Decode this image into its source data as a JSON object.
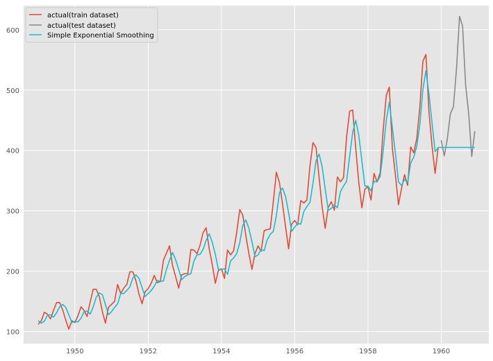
{
  "chart_data": {
    "type": "line",
    "title": "",
    "xlabel": "",
    "ylabel": "",
    "x_start": 1949.0,
    "x_step": 0.083333,
    "xlim": [
      1948.6,
      1961.3
    ],
    "ylim": [
      80,
      640
    ],
    "x_ticks": [
      1950,
      1952,
      1954,
      1956,
      1958,
      1960
    ],
    "x_tick_labels": [
      "1950",
      "1952",
      "1954",
      "1956",
      "1958",
      "1960"
    ],
    "y_ticks": [
      100,
      200,
      300,
      400,
      500,
      600
    ],
    "y_tick_labels": [
      "100",
      "200",
      "300",
      "400",
      "500",
      "600"
    ],
    "grid": true,
    "legend_position": "top-left",
    "style": {
      "background": "#e5e5e5",
      "grid_color": "#ffffff"
    },
    "series": [
      {
        "name": "actual(train dataset)",
        "color": "#e24a33",
        "start_index": 0,
        "values": [
          112,
          118,
          132,
          129,
          121,
          135,
          148,
          148,
          136,
          119,
          104,
          118,
          115,
          126,
          141,
          135,
          125,
          149,
          170,
          170,
          158,
          133,
          114,
          140,
          145,
          150,
          178,
          163,
          172,
          178,
          199,
          199,
          184,
          162,
          146,
          166,
          171,
          180,
          193,
          181,
          183,
          218,
          230,
          242,
          209,
          191,
          172,
          194,
          196,
          196,
          236,
          235,
          229,
          243,
          264,
          272,
          237,
          211,
          180,
          201,
          204,
          188,
          235,
          227,
          234,
          264,
          302,
          293,
          259,
          229,
          203,
          229,
          242,
          233,
          267,
          269,
          270,
          315,
          364,
          347,
          312,
          274,
          237,
          278,
          284,
          277,
          317,
          313,
          318,
          374,
          413,
          405,
          355,
          306,
          271,
          306,
          315,
          301,
          356,
          348,
          355,
          422,
          465,
          467,
          404,
          347,
          305,
          336,
          340,
          318,
          362,
          348,
          363,
          435,
          491,
          505,
          404,
          359,
          310,
          337,
          360,
          342,
          406,
          396,
          420,
          472,
          548,
          559,
          463,
          407,
          362,
          405
        ]
      },
      {
        "name": "actual(test dataset)",
        "color": "#888888",
        "start_index": 132,
        "values": [
          417,
          391,
          419,
          461,
          472,
          535,
          622,
          606,
          508,
          461,
          390,
          432
        ]
      },
      {
        "name": "Simple Exponential Smoothing",
        "color": "#17becf",
        "start_index": 0,
        "values": [
          118,
          114,
          117,
          127,
          128,
          124,
          131,
          141,
          145,
          140,
          128,
          115,
          117,
          116,
          122,
          133,
          134,
          129,
          141,
          157,
          164,
          161,
          145,
          128,
          133,
          140,
          146,
          163,
          163,
          168,
          174,
          189,
          194,
          188,
          173,
          158,
          163,
          168,
          175,
          185,
          183,
          184,
          203,
          218,
          231,
          219,
          203,
          186,
          191,
          194,
          196,
          217,
          227,
          228,
          236,
          251,
          262,
          248,
          228,
          203,
          203,
          204,
          195,
          217,
          222,
          229,
          247,
          276,
          285,
          271,
          249,
          224,
          227,
          236,
          234,
          252,
          261,
          266,
          292,
          330,
          338,
          324,
          297,
          266,
          273,
          279,
          278,
          299,
          307,
          314,
          346,
          383,
          394,
          373,
          336,
          301,
          304,
          310,
          305,
          332,
          341,
          349,
          390,
          430,
          450,
          425,
          383,
          341,
          341,
          333,
          349,
          348,
          357,
          400,
          450,
          480,
          438,
          395,
          348,
          342,
          352,
          347,
          379,
          389,
          407,
          443,
          501,
          532,
          493,
          445,
          398,
          405,
          405,
          405,
          405,
          405,
          405,
          405,
          405,
          405,
          405,
          405,
          405,
          405
        ]
      }
    ]
  }
}
